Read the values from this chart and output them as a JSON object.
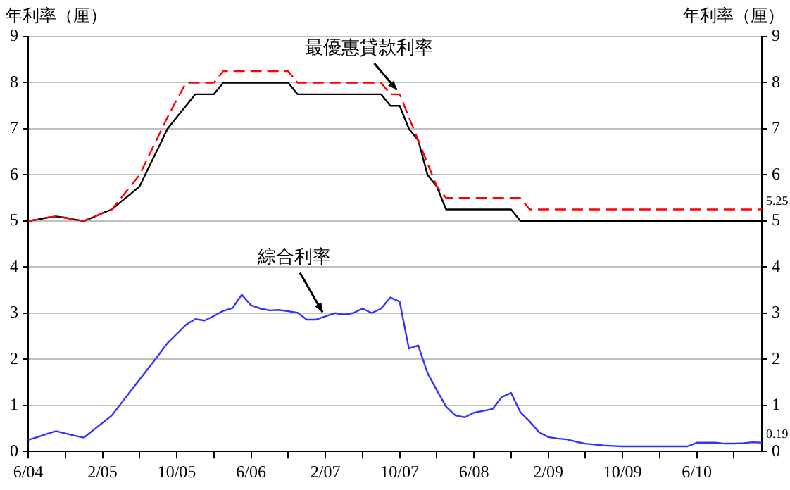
{
  "chart_data": {
    "type": "line",
    "ylabel": "年利率（厘）",
    "y2label": "年利率（厘）",
    "categories": [
      "6/04",
      null,
      null,
      null,
      null,
      null,
      null,
      null,
      "2/05",
      null,
      null,
      null,
      null,
      null,
      null,
      null,
      "10/05",
      null,
      null,
      null,
      null,
      null,
      null,
      null,
      "6/06",
      null,
      null,
      null,
      null,
      null,
      null,
      null,
      "2/07",
      null,
      null,
      null,
      null,
      null,
      null,
      null,
      "10/07",
      null,
      null,
      null,
      null,
      null,
      null,
      null,
      "6/08",
      null,
      null,
      null,
      null,
      null,
      null,
      null,
      "2/09",
      null,
      null,
      null,
      null,
      null,
      null,
      null,
      "10/09",
      null,
      null,
      null,
      null,
      null,
      null,
      null,
      "6/10",
      null,
      null,
      null,
      null,
      null,
      null,
      null
    ],
    "series": [
      {
        "color": "#000000",
        "line_style": "solid",
        "values": [
          5.0,
          5.03,
          5.07,
          5.1,
          5.07,
          5.03,
          5.0,
          5.08,
          5.17,
          5.25,
          5.42,
          5.58,
          5.75,
          6.17,
          6.58,
          7.0,
          7.25,
          7.5,
          7.75,
          7.75,
          7.75,
          8.0,
          8.0,
          8.0,
          8.0,
          8.0,
          8.0,
          8.0,
          8.0,
          7.75,
          7.75,
          7.75,
          7.75,
          7.75,
          7.75,
          7.75,
          7.75,
          7.75,
          7.75,
          7.5,
          7.5,
          7.0,
          6.75,
          6.0,
          5.75,
          5.25,
          5.25,
          5.25,
          5.25,
          5.25,
          5.25,
          5.25,
          5.25,
          5.0,
          5.0,
          5.0,
          5.0,
          5.0,
          5.0,
          5.0,
          5.0,
          5.0,
          5.0,
          5.0,
          5.0,
          5.0,
          5.0,
          5.0,
          5.0,
          5.0,
          5.0,
          5.0,
          5.0,
          5.0,
          5.0,
          5.0,
          5.0,
          5.0,
          5.0,
          5.0
        ]
      },
      {
        "color": "#ff0000",
        "line_style": "dashed",
        "values": [
          5.0,
          5.03,
          5.07,
          5.1,
          5.07,
          5.03,
          5.0,
          5.08,
          5.17,
          5.25,
          5.5,
          5.75,
          6.0,
          6.42,
          6.83,
          7.25,
          7.63,
          8.0,
          8.0,
          8.0,
          8.0,
          8.25,
          8.25,
          8.25,
          8.25,
          8.25,
          8.25,
          8.25,
          8.25,
          8.0,
          8.0,
          8.0,
          8.0,
          8.0,
          8.0,
          8.0,
          8.0,
          8.0,
          8.0,
          7.75,
          7.75,
          7.25,
          6.75,
          6.25,
          5.75,
          5.5,
          5.5,
          5.5,
          5.5,
          5.5,
          5.5,
          5.5,
          5.5,
          5.5,
          5.25,
          5.25,
          5.25,
          5.25,
          5.25,
          5.25,
          5.25,
          5.25,
          5.25,
          5.25,
          5.25,
          5.25,
          5.25,
          5.25,
          5.25,
          5.25,
          5.25,
          5.25,
          5.25,
          5.25,
          5.25,
          5.25,
          5.25,
          5.25,
          5.25,
          5.25
        ],
        "value_labels": [
          null,
          null,
          null,
          null,
          null,
          null,
          null,
          null,
          null,
          null,
          null,
          null,
          null,
          null,
          null,
          null,
          null,
          null,
          null,
          null,
          null,
          null,
          null,
          null,
          null,
          null,
          null,
          null,
          null,
          null,
          null,
          null,
          null,
          null,
          null,
          null,
          null,
          null,
          null,
          null,
          null,
          null,
          null,
          null,
          null,
          null,
          null,
          null,
          null,
          null,
          null,
          null,
          null,
          null,
          null,
          null,
          null,
          null,
          null,
          null,
          null,
          null,
          null,
          null,
          null,
          null,
          null,
          null,
          null,
          null,
          null,
          null,
          null,
          null,
          null,
          null,
          null,
          null,
          null,
          "5.25"
        ]
      },
      {
        "color": "#3333ff",
        "line_style": "solid",
        "values": [
          0.25,
          0.31,
          0.38,
          0.44,
          0.39,
          0.34,
          0.3,
          0.46,
          0.62,
          0.78,
          1.04,
          1.3,
          1.56,
          1.82,
          2.08,
          2.35,
          2.55,
          2.75,
          2.87,
          2.84,
          2.94,
          3.05,
          3.11,
          3.4,
          3.17,
          3.1,
          3.06,
          3.07,
          3.04,
          3.01,
          2.86,
          2.86,
          2.93,
          3.0,
          2.97,
          3.0,
          3.1,
          3.0,
          3.1,
          3.34,
          3.25,
          2.23,
          2.3,
          1.7,
          1.33,
          0.97,
          0.78,
          0.74,
          0.84,
          0.88,
          0.92,
          1.18,
          1.27,
          0.85,
          0.65,
          0.42,
          0.31,
          0.28,
          0.26,
          0.21,
          0.17,
          0.15,
          0.13,
          0.12,
          0.11,
          0.11,
          0.11,
          0.11,
          0.11,
          0.11,
          0.11,
          0.11,
          0.19,
          0.19,
          0.19,
          0.17,
          0.17,
          0.18,
          0.2,
          0.19
        ],
        "value_labels": [
          null,
          null,
          null,
          null,
          null,
          null,
          null,
          null,
          null,
          null,
          null,
          null,
          null,
          null,
          null,
          null,
          null,
          null,
          null,
          null,
          null,
          null,
          null,
          null,
          null,
          null,
          null,
          null,
          null,
          null,
          null,
          null,
          null,
          null,
          null,
          null,
          null,
          null,
          null,
          null,
          null,
          null,
          null,
          null,
          null,
          null,
          null,
          null,
          null,
          null,
          null,
          null,
          null,
          null,
          null,
          null,
          null,
          null,
          null,
          null,
          null,
          null,
          null,
          null,
          null,
          null,
          null,
          null,
          null,
          null,
          null,
          null,
          null,
          null,
          null,
          null,
          null,
          null,
          null,
          "0.19"
        ]
      }
    ],
    "ylim": [
      0,
      9
    ],
    "yticks": [
      0,
      1,
      2,
      3,
      4,
      5,
      6,
      7,
      8,
      9
    ],
    "y2lim": [
      0,
      9
    ],
    "y2ticks": [
      0,
      1,
      2,
      3,
      4,
      5,
      6,
      7,
      8,
      9
    ],
    "grid": "y",
    "legend": false,
    "marker": "none",
    "annotations": [
      {
        "text": "最優惠貸款利率",
        "x": "10/07",
        "y": 7.75
      },
      {
        "text": "綜合利率",
        "x": "2/07",
        "y": 2.93
      }
    ]
  }
}
